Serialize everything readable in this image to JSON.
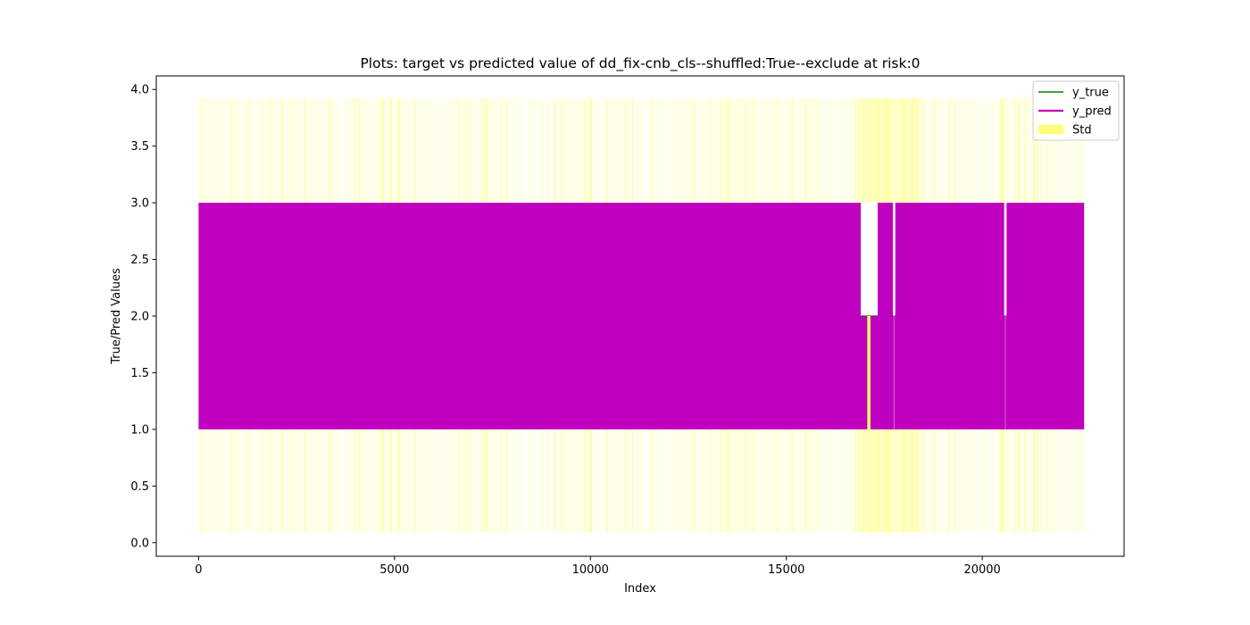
{
  "chart_data": {
    "type": "line",
    "title": "Plots: target vs predicted value of dd_fix-cnb_cls--shuffled:True--exclude at risk:0",
    "xlabel": "Index",
    "ylabel": "True/Pred Values",
    "xlim": [
      -1080,
      23620
    ],
    "ylim": [
      -0.12,
      4.12
    ],
    "x_ticks": [
      0,
      5000,
      10000,
      15000,
      20000
    ],
    "x_tick_labels": [
      "0",
      "5000",
      "10000",
      "15000",
      "20000"
    ],
    "y_ticks": [
      0.0,
      0.5,
      1.0,
      1.5,
      2.0,
      2.5,
      3.0,
      3.5,
      4.0
    ],
    "y_tick_labels": [
      "0.0",
      "0.5",
      "1.0",
      "1.5",
      "2.0",
      "2.5",
      "3.0",
      "3.5",
      "4.0"
    ],
    "grid": false,
    "legend_position": "upper right",
    "n_points": 22600,
    "series": [
      {
        "name": "y_true",
        "color": "#008000",
        "description": "oscillates between classes 1 and 3 across the full index range",
        "y_min": 1.0,
        "y_max": 3.0
      },
      {
        "name": "y_pred",
        "color": "#bf00bf",
        "y_min": 1.0,
        "y_max": 3.0,
        "gaps_in_upper_band": [
          [
            16900,
            17330
          ],
          [
            17720,
            17780
          ],
          [
            20560,
            20620
          ]
        ],
        "gap_floor": 2.0
      },
      {
        "name": "Std",
        "color": "#ffff66",
        "type": "band",
        "lower": 0.09,
        "upper": 3.92,
        "dense_region": [
          16800,
          18400
        ],
        "highlight_bar_x": 17100,
        "highlight_bar_range": [
          1.0,
          2.0
        ]
      }
    ]
  }
}
